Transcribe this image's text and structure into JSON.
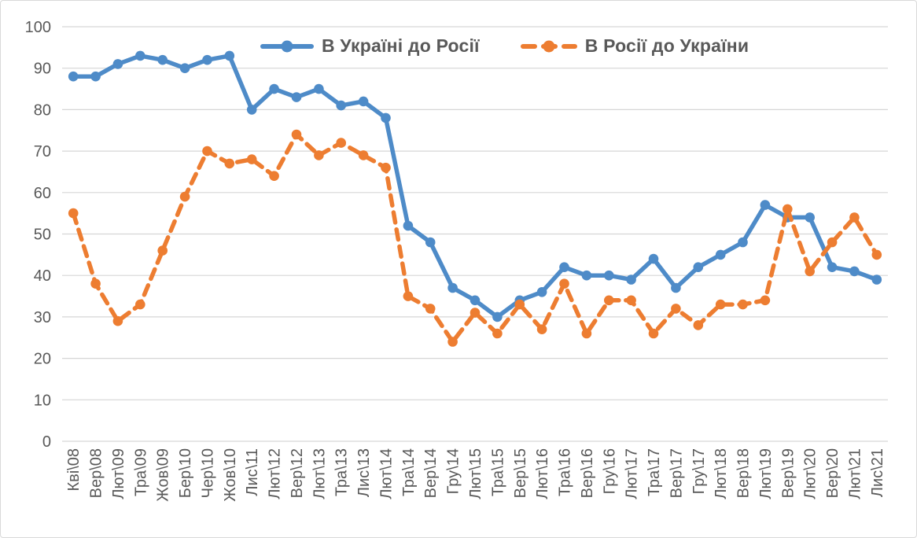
{
  "figure": {
    "background": "#FFFFFF",
    "border_color": "#D9D9D9"
  },
  "chart_data": {
    "type": "line",
    "title": "",
    "xlabel": "",
    "ylabel": "",
    "ylim": [
      0,
      100
    ],
    "y_tick_step": 10,
    "grid": true,
    "legend_position": "top-center",
    "colors": {
      "grid": "#D6D6D6",
      "tick_text": "#595959"
    },
    "categories": [
      "Кві\\08",
      "Вер\\08",
      "Лют\\09",
      "Тра\\09",
      "Жов\\09",
      "Бер\\10",
      "Чер\\10",
      "Жов\\10",
      "Лис\\11",
      "Лют\\12",
      "Вер\\12",
      "Лют\\13",
      "Тра\\13",
      "Лис\\13",
      "Лют\\14",
      "Тра\\14",
      "Вер\\14",
      "Гру\\14",
      "Лют\\15",
      "Тра\\15",
      "Вер\\15",
      "Лют\\16",
      "Тра\\16",
      "Вер\\16",
      "Гру\\16",
      "Лют\\17",
      "Тра\\17",
      "Вер\\17",
      "Гру\\17",
      "Лют\\18",
      "Вер\\18",
      "Лют\\19",
      "Вер\\19",
      "Лют\\20",
      "Вер\\20",
      "Лют\\21",
      "Лис\\21"
    ],
    "series": [
      {
        "name": "В Україні до Росії",
        "color": "#4E8BC8",
        "line_style": "solid",
        "marker": "circle",
        "values": [
          88,
          88,
          91,
          93,
          92,
          90,
          92,
          93,
          80,
          85,
          83,
          85,
          81,
          82,
          78,
          52,
          48,
          37,
          34,
          30,
          34,
          36,
          42,
          40,
          40,
          39,
          44,
          37,
          42,
          45,
          48,
          57,
          54,
          54,
          42,
          41,
          39
        ]
      },
      {
        "name": "В Росії до України",
        "color": "#ED7D31",
        "line_style": "dashed",
        "marker": "circle",
        "values": [
          55,
          38,
          29,
          33,
          46,
          59,
          70,
          67,
          68,
          64,
          74,
          69,
          72,
          69,
          66,
          35,
          32,
          24,
          31,
          26,
          33,
          27,
          38,
          26,
          34,
          34,
          26,
          32,
          28,
          33,
          33,
          34,
          56,
          41,
          48,
          54,
          45
        ]
      }
    ]
  }
}
